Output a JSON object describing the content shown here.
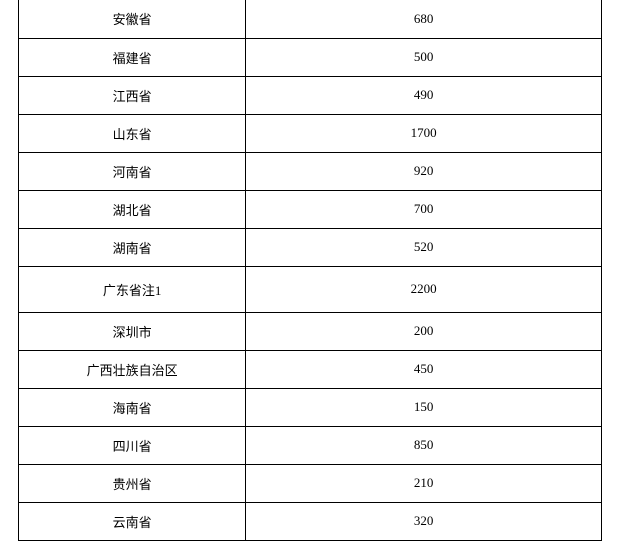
{
  "table": {
    "type": "table",
    "background_color": "#ffffff",
    "border_color": "#000000",
    "text_color": "#000000",
    "font_size": 13,
    "columns": [
      {
        "key": "name",
        "width_pct": 39,
        "align": "center"
      },
      {
        "key": "value",
        "width_pct": 61,
        "align": "center"
      }
    ],
    "rows": [
      {
        "name": "安徽省",
        "value": "680",
        "note": ""
      },
      {
        "name": "福建省",
        "value": "500",
        "note": ""
      },
      {
        "name": "江西省",
        "value": "490",
        "note": ""
      },
      {
        "name": "山东省",
        "value": "1700",
        "note": ""
      },
      {
        "name": "河南省",
        "value": "920",
        "note": ""
      },
      {
        "name": "湖北省",
        "value": "700",
        "note": ""
      },
      {
        "name": "湖南省",
        "value": "520",
        "note": ""
      },
      {
        "name": "广东省",
        "value": "2200",
        "note": "注1"
      },
      {
        "name": "深圳市",
        "value": "200",
        "note": ""
      },
      {
        "name": "广西壮族自治区",
        "value": "450",
        "note": ""
      },
      {
        "name": "海南省",
        "value": "150",
        "note": ""
      },
      {
        "name": "四川省",
        "value": "850",
        "note": ""
      },
      {
        "name": "贵州省",
        "value": "210",
        "note": ""
      },
      {
        "name": "云南省",
        "value": "320",
        "note": ""
      }
    ]
  }
}
